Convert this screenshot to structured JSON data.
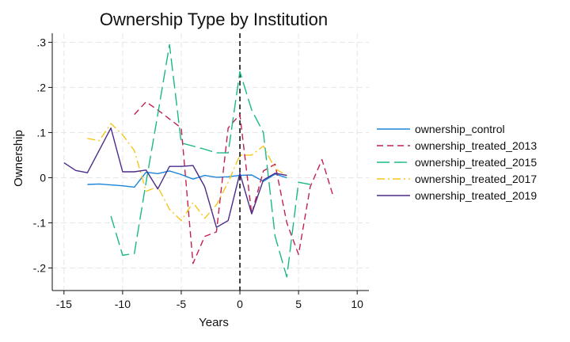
{
  "chart_data": {
    "type": "line",
    "title": "Ownership Type by Institution",
    "xlabel": "Years",
    "ylabel": "Ownership",
    "xlim": [
      -16,
      11
    ],
    "ylim": [
      -0.25,
      0.32
    ],
    "x_ticks": [
      -15,
      -10,
      -5,
      0,
      5,
      10
    ],
    "x_tick_labels": [
      "-15",
      "-10",
      "-5",
      "0",
      "5",
      "10"
    ],
    "y_ticks": [
      0.3,
      0.2,
      0.1,
      0,
      -0.1,
      -0.2
    ],
    "y_tick_labels": [
      ".3",
      ".2",
      ".1",
      "0",
      "-.1",
      "-.2"
    ],
    "grid": true,
    "reference_line_x": 0,
    "legend_position": "right",
    "series": [
      {
        "name": "ownership_control",
        "color": "#1a85d9",
        "dash": "solid",
        "x": [
          -13,
          -12,
          -11,
          -10,
          -9,
          -8,
          -7,
          -6,
          -5,
          -4,
          -3,
          -2,
          -1,
          0,
          1,
          2,
          3,
          4
        ],
        "y": [
          -0.015,
          -0.014,
          -0.016,
          -0.018,
          -0.021,
          0.012,
          0.009,
          0.015,
          0.007,
          -0.003,
          0.005,
          0.001,
          0.002,
          0.005,
          0.006,
          -0.008,
          0.008,
          0.0
        ]
      },
      {
        "name": "ownership_treated_2013",
        "color": "#c4204f",
        "dash": "long",
        "x": [
          -9,
          -8,
          -7,
          -6,
          -5,
          -4,
          -3,
          -2,
          -1,
          0,
          1,
          2,
          3,
          4,
          5,
          6,
          7,
          8
        ],
        "y": [
          0.14,
          0.168,
          0.15,
          0.13,
          0.11,
          -0.19,
          -0.13,
          -0.12,
          0.11,
          0.14,
          -0.08,
          0.015,
          0.03,
          -0.1,
          -0.17,
          -0.02,
          0.04,
          -0.045
        ]
      },
      {
        "name": "ownership_treated_2015",
        "color": "#1ab888",
        "dash": "longlong",
        "x": [
          -11,
          -10,
          -9,
          -8,
          -7,
          -6,
          -5,
          -4,
          -3,
          -2,
          -1,
          0,
          1,
          2,
          3,
          4,
          5,
          6
        ],
        "y": [
          -0.085,
          -0.172,
          -0.168,
          -0.01,
          0.14,
          0.295,
          0.077,
          0.07,
          0.063,
          0.055,
          0.055,
          0.235,
          0.15,
          0.1,
          -0.13,
          -0.22,
          -0.01,
          -0.015
        ]
      },
      {
        "name": "ownership_treated_2017",
        "color": "#f5c519",
        "dash": "dashdot",
        "x": [
          -13,
          -12,
          -11,
          -10,
          -9,
          -8,
          -7,
          -6,
          -5,
          -4,
          -3,
          -2,
          -1,
          0,
          1,
          2,
          3,
          4
        ],
        "y": [
          0.087,
          0.082,
          0.12,
          0.095,
          0.06,
          -0.03,
          -0.02,
          -0.07,
          -0.095,
          -0.055,
          -0.09,
          -0.06,
          -0.01,
          0.05,
          0.05,
          0.07,
          0.02,
          0.005
        ]
      },
      {
        "name": "ownership_treated_2019",
        "color": "#4b2b8a",
        "dash": "solid",
        "x": [
          -15,
          -14,
          -13,
          -11,
          -10,
          -9,
          -8,
          -7,
          -6,
          -5,
          -4,
          -3,
          -2,
          -1,
          0,
          1,
          2,
          3,
          4
        ],
        "y": [
          0.033,
          0.016,
          0.011,
          0.11,
          0.013,
          0.013,
          0.017,
          -0.025,
          0.025,
          0.025,
          0.027,
          -0.02,
          -0.11,
          -0.095,
          0.01,
          -0.08,
          -0.005,
          0.01,
          0.005
        ]
      }
    ]
  }
}
